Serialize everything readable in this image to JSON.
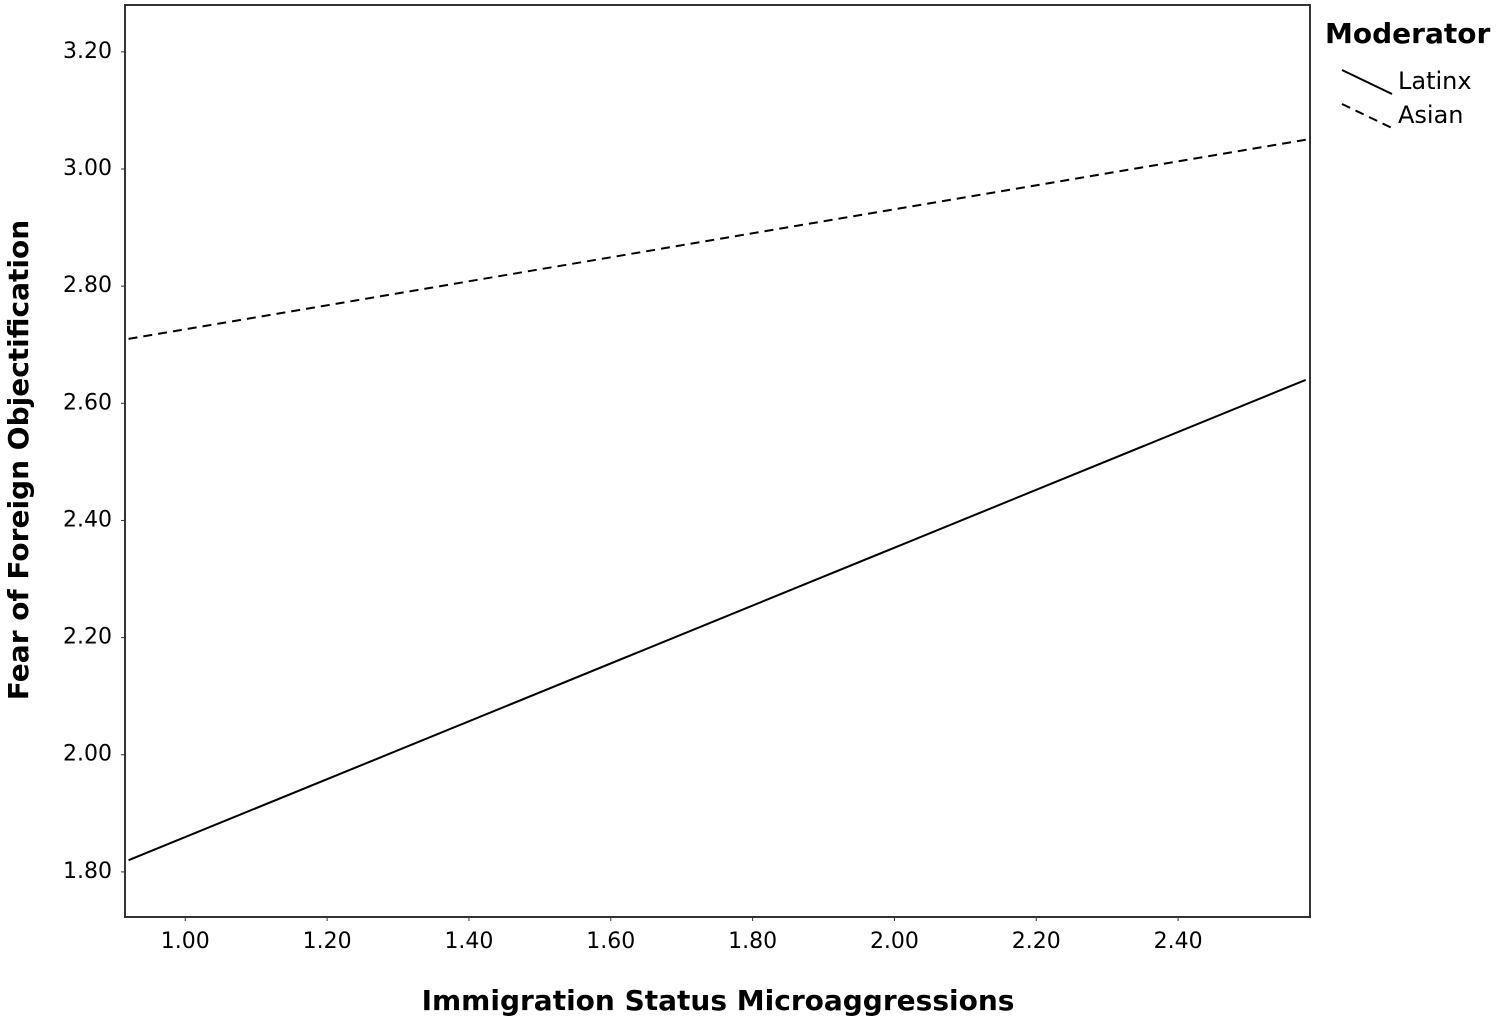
{
  "chart_data": {
    "type": "line",
    "x_label": "Immigration Status Microaggressions",
    "y_label": "Fear of Foreign Objectification",
    "legend_title": "Moderator",
    "x": [
      0.92,
      2.58
    ],
    "series": [
      {
        "name": "Latinx",
        "color": "#000000",
        "style": "solid",
        "values": [
          1.82,
          2.64
        ]
      },
      {
        "name": "Asian",
        "color": "#000000",
        "style": "dashed",
        "values": [
          2.71,
          3.05
        ]
      }
    ],
    "xlim": [
      0.915,
      2.586
    ],
    "ylim": [
      1.723,
      3.28
    ],
    "xticks": [
      {
        "value": 1,
        "label": "1.00"
      },
      {
        "value": 1.2,
        "label": "1.20"
      },
      {
        "value": 1.4,
        "label": "1.40"
      },
      {
        "value": 1.6,
        "label": "1.60"
      },
      {
        "value": 1.8,
        "label": "1.80"
      },
      {
        "value": 2,
        "label": "2.00"
      },
      {
        "value": 2.2,
        "label": "2.20"
      },
      {
        "value": 2.4,
        "label": "2.40"
      }
    ],
    "yticks": [
      {
        "value": 1.8,
        "label": "1.80"
      },
      {
        "value": 2,
        "label": "2.00"
      },
      {
        "value": 2.2,
        "label": "2.20"
      },
      {
        "value": 2.4,
        "label": "2.40"
      },
      {
        "value": 2.6,
        "label": "2.60"
      },
      {
        "value": 2.8,
        "label": "2.80"
      },
      {
        "value": 3,
        "label": "3.00"
      },
      {
        "value": 3.2,
        "label": "3.20"
      }
    ],
    "legend": "outside-top-right"
  }
}
